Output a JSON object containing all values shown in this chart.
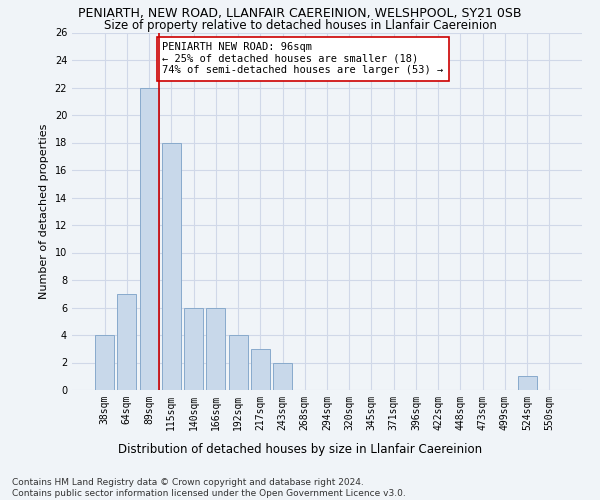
{
  "title": "PENIARTH, NEW ROAD, LLANFAIR CAEREINION, WELSHPOOL, SY21 0SB",
  "subtitle": "Size of property relative to detached houses in Llanfair Caereinion",
  "xlabel": "Distribution of detached houses by size in Llanfair Caereinion",
  "ylabel": "Number of detached properties",
  "categories": [
    "38sqm",
    "64sqm",
    "89sqm",
    "115sqm",
    "140sqm",
    "166sqm",
    "192sqm",
    "217sqm",
    "243sqm",
    "268sqm",
    "294sqm",
    "320sqm",
    "345sqm",
    "371sqm",
    "396sqm",
    "422sqm",
    "448sqm",
    "473sqm",
    "499sqm",
    "524sqm",
    "550sqm"
  ],
  "values": [
    4,
    7,
    22,
    18,
    6,
    6,
    4,
    3,
    2,
    0,
    0,
    0,
    0,
    0,
    0,
    0,
    0,
    0,
    0,
    1,
    0
  ],
  "bar_color": "#c8d8ea",
  "bar_edge_color": "#88aacc",
  "grid_color": "#d0d8e8",
  "annotation_text": "PENIARTH NEW ROAD: 96sqm\n← 25% of detached houses are smaller (18)\n74% of semi-detached houses are larger (53) →",
  "annotation_box_color": "white",
  "annotation_box_edge_color": "#cc0000",
  "vline_color": "#cc0000",
  "ylim": [
    0,
    26
  ],
  "yticks": [
    0,
    2,
    4,
    6,
    8,
    10,
    12,
    14,
    16,
    18,
    20,
    22,
    24,
    26
  ],
  "footer": "Contains HM Land Registry data © Crown copyright and database right 2024.\nContains public sector information licensed under the Open Government Licence v3.0.",
  "title_fontsize": 9,
  "subtitle_fontsize": 8.5,
  "xlabel_fontsize": 8.5,
  "ylabel_fontsize": 8,
  "tick_fontsize": 7,
  "annotation_fontsize": 7.5,
  "footer_fontsize": 6.5,
  "bg_color": "#f0f4f8"
}
